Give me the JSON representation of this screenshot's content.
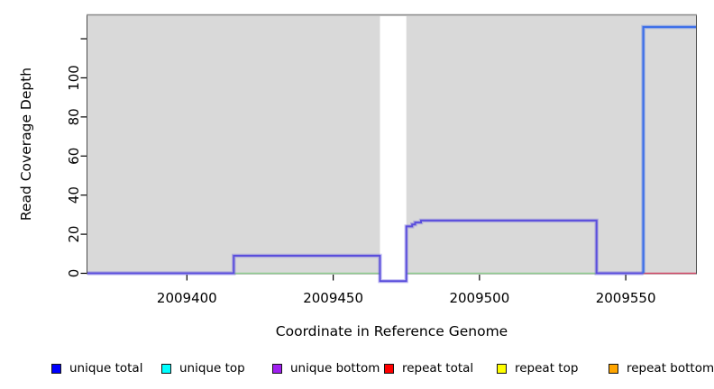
{
  "chart_data": {
    "type": "line",
    "title": "",
    "xlabel": "Coordinate in Reference Genome",
    "ylabel": "Read Coverage Depth",
    "xlim": [
      2009366,
      2009574
    ],
    "ylim": [
      0,
      132
    ],
    "xticks": [
      2009400,
      2009450,
      2009500,
      2009550
    ],
    "yticks": [
      {
        "v": 0,
        "label": "0"
      },
      {
        "v": 20,
        "label": "20"
      },
      {
        "v": 40,
        "label": "40"
      },
      {
        "v": 60,
        "label": "60"
      },
      {
        "v": 80,
        "label": "80"
      },
      {
        "v": 100,
        "label": "100"
      },
      {
        "v": 120,
        "label": ""
      }
    ],
    "grid": false,
    "plot_bg_color": "#d9d9d9",
    "border_color": "#4a4a4a",
    "mask_regions": [
      {
        "x0": 2009466,
        "x1": 2009475
      }
    ],
    "series": [
      {
        "name": "unique-top-baseline",
        "color": "#8fcc90",
        "width": 1.6,
        "halo": false,
        "points": [
          [
            2009416,
            0
          ],
          [
            2009466,
            0
          ]
        ]
      },
      {
        "name": "unique-top-baseline-2",
        "color": "#8fcc90",
        "width": 1.6,
        "halo": false,
        "points": [
          [
            2009475,
            0
          ],
          [
            2009540,
            0
          ]
        ]
      },
      {
        "name": "repeat-total",
        "color": "#d14a68",
        "width": 1.6,
        "halo": false,
        "points": [
          [
            2009556,
            0
          ],
          [
            2009574,
            0
          ]
        ]
      },
      {
        "name": "unique-bottom",
        "color": "#5a4edc",
        "width": 2,
        "halo": true,
        "points": [
          [
            2009366,
            0
          ],
          [
            2009416,
            0
          ],
          [
            2009416,
            9
          ],
          [
            2009466,
            9
          ],
          [
            2009466,
            -4
          ],
          [
            2009475,
            -4
          ],
          [
            2009475,
            24
          ],
          [
            2009477,
            24
          ],
          [
            2009477,
            25
          ],
          [
            2009478,
            25
          ],
          [
            2009478,
            26
          ],
          [
            2009480,
            26
          ],
          [
            2009480,
            27
          ],
          [
            2009540,
            27
          ],
          [
            2009540,
            0
          ],
          [
            2009556,
            0
          ]
        ]
      },
      {
        "name": "unique-total",
        "color": "#3d6fe8",
        "width": 2.2,
        "halo": true,
        "points": [
          [
            2009556,
            0
          ],
          [
            2009556,
            126
          ],
          [
            2009574,
            126
          ]
        ]
      }
    ],
    "legend_position": "bottom",
    "legend": [
      {
        "label": "unique total",
        "color": "#0000ff"
      },
      {
        "label": "unique top",
        "color": "#00ffff"
      },
      {
        "label": "unique bottom",
        "color": "#a020f0"
      },
      {
        "label": "repeat total",
        "color": "#ff0000"
      },
      {
        "label": "repeat top",
        "color": "#ffff00"
      },
      {
        "label": "repeat bottom",
        "color": "#ffa500"
      }
    ]
  }
}
